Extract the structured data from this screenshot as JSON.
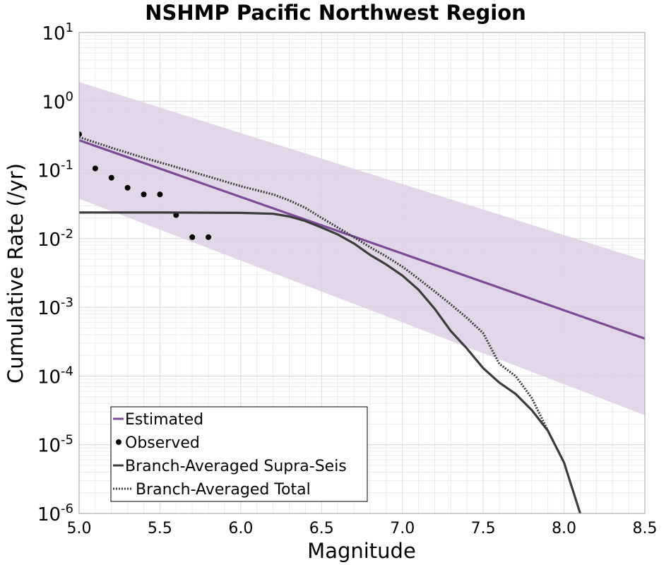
{
  "chart_data": {
    "type": "line",
    "title": "NSHMP Pacific Northwest Region",
    "xlabel": "Magnitude",
    "ylabel": "Cumulative Rate (/yr)",
    "xlim": [
      5.0,
      8.5
    ],
    "ylim": [
      1e-06,
      10
    ],
    "yscale": "log",
    "grid": true,
    "legend_position": "bottom-left",
    "x_ticks": [
      "5.0",
      "5.5",
      "6.0",
      "6.5",
      "7.0",
      "7.5",
      "8.0",
      "8.5"
    ],
    "y_ticks": [
      {
        "base": "10",
        "exp": "1"
      },
      {
        "base": "10",
        "exp": "0"
      },
      {
        "base": "10",
        "exp": "-1"
      },
      {
        "base": "10",
        "exp": "-2"
      },
      {
        "base": "10",
        "exp": "-3"
      },
      {
        "base": "10",
        "exp": "-4"
      },
      {
        "base": "10",
        "exp": "-5"
      },
      {
        "base": "10",
        "exp": "-6"
      }
    ],
    "band": {
      "x": [
        5.0,
        8.5
      ],
      "upper": [
        1.9,
        0.0048
      ],
      "lower": [
        0.038,
        2.7e-05
      ],
      "color": "#dcd0e4"
    },
    "series": [
      {
        "name": "Estimated",
        "style": "solid",
        "color": "#7b4c96",
        "x": [
          5.0,
          8.5
        ],
        "y": [
          0.27,
          0.00035
        ]
      },
      {
        "name": "Observed",
        "style": "points",
        "color": "#000000",
        "x": [
          5.0,
          5.1,
          5.2,
          5.3,
          5.4,
          5.5,
          5.6,
          5.7,
          5.8
        ],
        "y": [
          0.33,
          0.105,
          0.077,
          0.055,
          0.044,
          0.044,
          0.022,
          0.0105,
          0.0105
        ]
      },
      {
        "name": "Branch-Averaged Supra-Seis",
        "style": "solid",
        "color": "#3c3c3c",
        "x": [
          5.0,
          5.5,
          6.0,
          6.2,
          6.3,
          6.4,
          6.5,
          6.6,
          6.7,
          6.8,
          6.9,
          7.0,
          7.1,
          7.2,
          7.3,
          7.4,
          7.5,
          7.6,
          7.7,
          7.8,
          7.9,
          8.0,
          8.1
        ],
        "y": [
          0.024,
          0.024,
          0.0237,
          0.023,
          0.021,
          0.018,
          0.0145,
          0.0115,
          0.0085,
          0.0058,
          0.0042,
          0.0029,
          0.0018,
          0.00095,
          0.00045,
          0.00025,
          0.00013,
          8e-05,
          5.5e-05,
          3.2e-05,
          1.6e-05,
          5.5e-06,
          1e-06
        ]
      },
      {
        "name": "Branch-Averaged Total",
        "style": "dotted",
        "color": "#3c3c3c",
        "x": [
          5.0,
          5.2,
          5.4,
          5.6,
          5.8,
          6.0,
          6.2,
          6.3,
          6.4,
          6.5,
          6.6,
          6.7,
          6.8,
          6.9,
          7.0,
          7.1,
          7.2,
          7.3,
          7.4,
          7.5,
          7.6,
          7.7,
          7.8,
          7.9
        ],
        "y": [
          0.3,
          0.21,
          0.15,
          0.11,
          0.08,
          0.058,
          0.044,
          0.036,
          0.028,
          0.02,
          0.0145,
          0.0105,
          0.0075,
          0.0055,
          0.0039,
          0.0026,
          0.0017,
          0.0011,
          0.0007,
          0.00042,
          0.00015,
          0.0001,
          4.8e-05,
          1.6e-05
        ]
      }
    ]
  }
}
